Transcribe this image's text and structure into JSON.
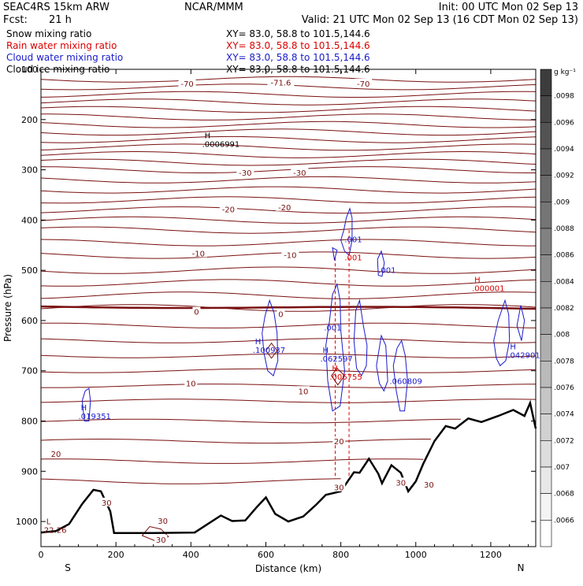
{
  "header": {
    "model": "SEAC4RS 15km ARW",
    "org": "NCAR/MMM",
    "init": "Init: 00 UTC Mon 02 Sep 13",
    "fcst_label": "Fcst:",
    "fcst_value": "21 h",
    "valid": "Valid: 21 UTC Mon 02 Sep 13 (16 CDT Mon 02 Sep 13)",
    "xy": "XY=  83.0, 58.8 to 101.5,144.6"
  },
  "colors": {
    "snow": "#000000",
    "rain": "#dd0000",
    "cloud_water": "#1a1acc",
    "cloud_ice": "#000000",
    "temperature": "#7a1010",
    "terrain": "#000000"
  },
  "legend": [
    {
      "name": "Snow mixing ratio",
      "color": "#000000"
    },
    {
      "name": "Rain water mixing ratio",
      "color": "#dd0000"
    },
    {
      "name": "Cloud water mixing ratio",
      "color": "#1a1acc"
    },
    {
      "name": "Cloud ice mixing ratio",
      "color": "#000000"
    }
  ],
  "chart_data": {
    "type": "cross-section contour",
    "xlabel": "Distance (km)",
    "ylabel": "Pressure (hPa)",
    "xlim": [
      0,
      1320
    ],
    "ylim": [
      1050,
      100
    ],
    "x_ticks": [
      0,
      200,
      400,
      600,
      800,
      1000,
      1200
    ],
    "y_ticks": [
      100,
      200,
      300,
      400,
      500,
      600,
      700,
      800,
      900,
      1000
    ],
    "y_tick_labels": [
      "100",
      "200",
      "300",
      "400",
      "500",
      "600",
      "700",
      "800",
      "900",
      "1000"
    ],
    "left_end_label": "S",
    "right_end_label": "N",
    "colorbar": {
      "unit": "g kg⁻¹",
      "ticks": [
        ".0098",
        ".0096",
        ".0094",
        ".0092",
        ".009",
        ".0088",
        ".0086",
        ".0084",
        ".0082",
        ".008",
        ".0078",
        ".0076",
        ".0074",
        ".0072",
        ".007",
        ".0068",
        ".0066"
      ]
    },
    "isotherm_pressures": [
      120,
      135,
      150,
      165,
      180,
      195,
      210,
      225,
      240,
      255,
      270,
      285,
      300,
      320,
      340,
      360,
      380,
      400,
      420,
      445,
      470,
      500,
      525,
      550,
      575,
      610,
      640,
      670,
      700,
      730,
      760,
      800,
      840,
      880,
      920
    ],
    "freezing_level_pressure": 572,
    "temperature_labels": [
      {
        "text": "-70",
        "x": 390,
        "p": 128
      },
      {
        "text": "-71.6",
        "x": 640,
        "p": 126
      },
      {
        "text": "-70",
        "x": 860,
        "p": 128
      },
      {
        "text": "-30",
        "x": 545,
        "p": 305
      },
      {
        "text": "-30",
        "x": 690,
        "p": 305
      },
      {
        "text": "-20",
        "x": 500,
        "p": 378
      },
      {
        "text": "-20",
        "x": 650,
        "p": 374
      },
      {
        "text": "-10",
        "x": 420,
        "p": 466
      },
      {
        "text": "-10",
        "x": 665,
        "p": 469
      },
      {
        "text": "0",
        "x": 415,
        "p": 582
      },
      {
        "text": "0",
        "x": 640,
        "p": 587
      },
      {
        "text": "10",
        "x": 400,
        "p": 725
      },
      {
        "text": "10",
        "x": 700,
        "p": 740
      },
      {
        "text": "20",
        "x": 40,
        "p": 865
      },
      {
        "text": "20",
        "x": 795,
        "p": 840
      },
      {
        "text": "30",
        "x": 175,
        "p": 962
      },
      {
        "text": "30",
        "x": 325,
        "p": 998
      },
      {
        "text": "30",
        "x": 795,
        "p": 932
      },
      {
        "text": "30",
        "x": 960,
        "p": 922
      },
      {
        "text": "30",
        "x": 1035,
        "p": 926
      },
      {
        "text": "30",
        "x": 320,
        "p": 1036
      }
    ],
    "terrain": [
      [
        0,
        1022
      ],
      [
        40,
        1019
      ],
      [
        75,
        1005
      ],
      [
        110,
        965
      ],
      [
        140,
        937
      ],
      [
        160,
        940
      ],
      [
        185,
        980
      ],
      [
        195,
        1023
      ],
      [
        300,
        1023
      ],
      [
        410,
        1022
      ],
      [
        445,
        1005
      ],
      [
        480,
        988
      ],
      [
        510,
        999
      ],
      [
        545,
        998
      ],
      [
        575,
        972
      ],
      [
        600,
        952
      ],
      [
        625,
        985
      ],
      [
        660,
        1000
      ],
      [
        700,
        990
      ],
      [
        735,
        966
      ],
      [
        760,
        947
      ],
      [
        800,
        940
      ],
      [
        835,
        902
      ],
      [
        850,
        903
      ],
      [
        875,
        875
      ],
      [
        900,
        905
      ],
      [
        910,
        924
      ],
      [
        935,
        888
      ],
      [
        960,
        903
      ],
      [
        980,
        940
      ],
      [
        1000,
        920
      ],
      [
        1020,
        885
      ],
      [
        1050,
        840
      ],
      [
        1080,
        810
      ],
      [
        1105,
        815
      ],
      [
        1140,
        795
      ],
      [
        1175,
        802
      ],
      [
        1220,
        790
      ],
      [
        1260,
        778
      ],
      [
        1290,
        790
      ],
      [
        1305,
        764
      ],
      [
        1320,
        815
      ]
    ],
    "rain_lines": [
      {
        "x": 785,
        "p_top": 475,
        "p_bottom": 915
      },
      {
        "x": 822,
        "p_top": 420,
        "p_bottom": 910
      }
    ],
    "cloud_water_contours": [
      [
        [
          800,
          440
        ],
        [
          808,
          420
        ],
        [
          815,
          395
        ],
        [
          824,
          377
        ],
        [
          830,
          396
        ],
        [
          830,
          440
        ],
        [
          822,
          470
        ],
        [
          810,
          462
        ]
      ],
      [
        [
          778,
          455
        ],
        [
          783,
          480
        ],
        [
          790,
          460
        ]
      ],
      [
        [
          898,
          478
        ],
        [
          908,
          462
        ],
        [
          916,
          485
        ],
        [
          910,
          512
        ],
        [
          900,
          510
        ]
      ],
      [
        [
          590,
          625
        ],
        [
          598,
          590
        ],
        [
          610,
          560
        ],
        [
          622,
          585
        ],
        [
          630,
          625
        ],
        [
          632,
          680
        ],
        [
          620,
          710
        ],
        [
          605,
          700
        ],
        [
          595,
          665
        ]
      ],
      [
        [
          760,
          650
        ],
        [
          770,
          600
        ],
        [
          778,
          548
        ],
        [
          790,
          528
        ],
        [
          798,
          560
        ],
        [
          800,
          620
        ],
        [
          810,
          700
        ],
        [
          798,
          770
        ],
        [
          778,
          780
        ],
        [
          765,
          720
        ]
      ],
      [
        [
          835,
          640
        ],
        [
          840,
          580
        ],
        [
          850,
          560
        ],
        [
          860,
          610
        ],
        [
          870,
          650
        ],
        [
          868,
          690
        ],
        [
          855,
          710
        ],
        [
          842,
          695
        ]
      ],
      [
        [
          895,
          690
        ],
        [
          908,
          630
        ],
        [
          920,
          650
        ],
        [
          925,
          720
        ],
        [
          915,
          740
        ],
        [
          903,
          725
        ]
      ],
      [
        [
          940,
          690
        ],
        [
          950,
          655
        ],
        [
          962,
          640
        ],
        [
          972,
          670
        ],
        [
          978,
          720
        ],
        [
          970,
          780
        ],
        [
          958,
          780
        ],
        [
          948,
          740
        ]
      ],
      [
        [
          1208,
          640
        ],
        [
          1220,
          600
        ],
        [
          1238,
          560
        ],
        [
          1248,
          588
        ],
        [
          1250,
          640
        ],
        [
          1240,
          680
        ],
        [
          1225,
          690
        ],
        [
          1215,
          675
        ]
      ],
      [
        [
          1270,
          610
        ],
        [
          1280,
          570
        ],
        [
          1290,
          600
        ],
        [
          1282,
          640
        ]
      ],
      [
        [
          110,
          760
        ],
        [
          118,
          740
        ],
        [
          128,
          735
        ],
        [
          132,
          760
        ],
        [
          128,
          800
        ],
        [
          116,
          800
        ]
      ]
    ],
    "rain_small_contours": [
      [
        [
          600,
          660
        ],
        [
          615,
          645
        ],
        [
          630,
          660
        ],
        [
          615,
          675
        ]
      ],
      [
        [
          775,
          710
        ],
        [
          790,
          695
        ],
        [
          810,
          710
        ],
        [
          792,
          728
        ]
      ],
      [
        [
          270,
          1028
        ],
        [
          290,
          1010
        ],
        [
          320,
          1015
        ],
        [
          340,
          1030
        ],
        [
          310,
          1040
        ]
      ]
    ],
    "annotations": [
      {
        "mark": "H",
        "value": ".0006991",
        "x": 430,
        "p": 245,
        "color": "#000000"
      },
      {
        "mark": "H",
        "value": ".000001",
        "x": 1150,
        "p": 532,
        "color": "#dd0000"
      },
      {
        "mark": "H",
        "value": ".042901",
        "x": 1245,
        "p": 665,
        "color": "#1a1acc"
      },
      {
        "mark": "H",
        "value": ".062597",
        "x": 745,
        "p": 672,
        "color": "#1a1acc"
      },
      {
        "mark": "H",
        "value": ".006755",
        "x": 770,
        "p": 708,
        "color": "#dd0000"
      },
      {
        "mark": "H",
        "value": ".100937",
        "x": 565,
        "p": 655,
        "color": "#1a1acc"
      },
      {
        "mark": "L",
        "value": "22.26",
        "x": 8,
        "p": 1013,
        "color": "#7a1010"
      },
      {
        "mark": "H",
        "value": ".019351",
        "x": 100,
        "p": 787,
        "color": "#1a1acc"
      }
    ],
    "text_labels": [
      {
        "text": ".001",
        "x": 810,
        "p": 444,
        "color": "#1a1acc"
      },
      {
        "text": ".001",
        "x": 810,
        "p": 480,
        "color": "#dd0000"
      },
      {
        "text": ".001",
        "x": 900,
        "p": 505,
        "color": "#1a1acc"
      },
      {
        "text": ".001",
        "x": 755,
        "p": 620,
        "color": "#1a1acc"
      },
      {
        "text": ".060809",
        "x": 930,
        "p": 726,
        "color": "#1a1acc"
      }
    ]
  }
}
